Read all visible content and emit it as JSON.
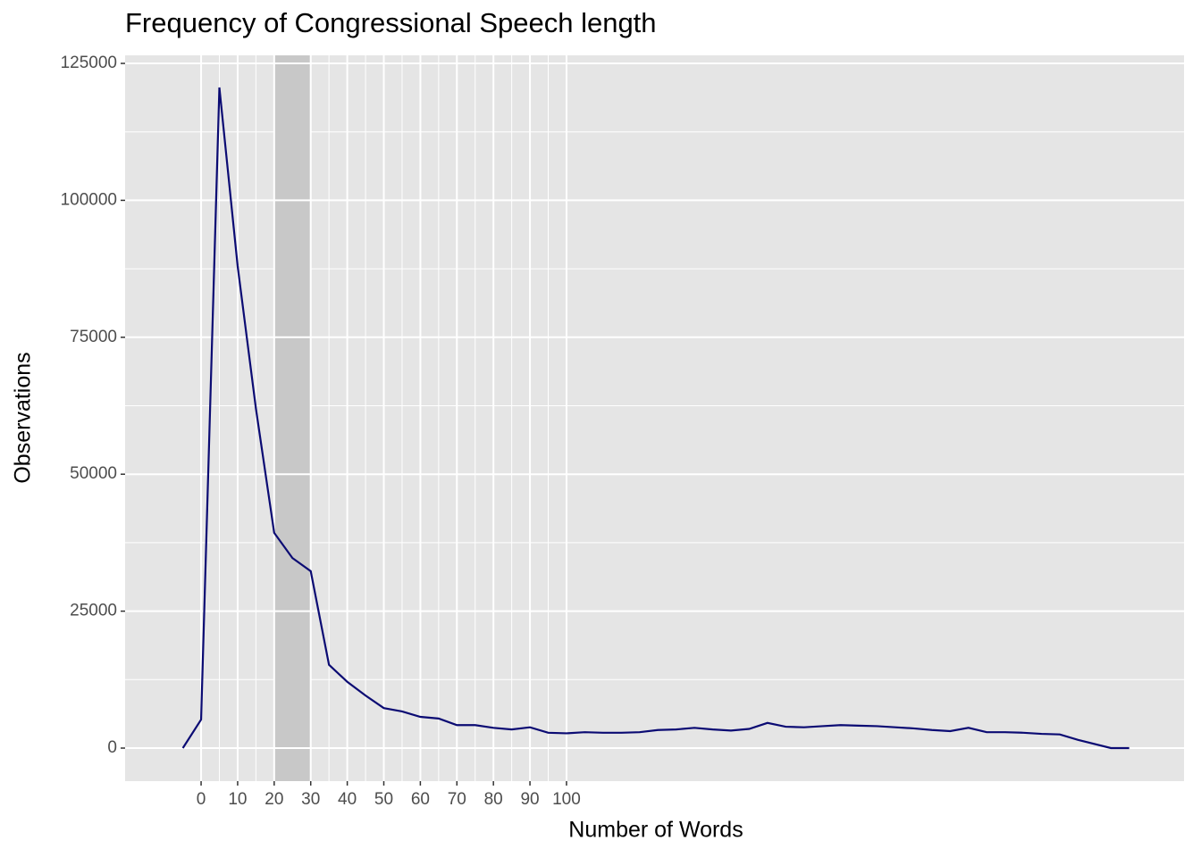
{
  "chart_data": {
    "type": "line",
    "title": "Frequency of Congressional Speech length",
    "x_label": "Number of Words",
    "y_label": "Observations",
    "x": [
      -5,
      0,
      5,
      10,
      15,
      20,
      25,
      30,
      35,
      40,
      45,
      50,
      55,
      60,
      65,
      70,
      75,
      80,
      85,
      90,
      95,
      100,
      105,
      110,
      115,
      120,
      125,
      130,
      135,
      140,
      145,
      150,
      155,
      160,
      165,
      170,
      175,
      180,
      185,
      190,
      195,
      200,
      205,
      210,
      215,
      220,
      225,
      230,
      235,
      240,
      249,
      254
    ],
    "series": [
      {
        "name": "Observations",
        "color": "#0b0b73",
        "values": [
          0,
          5200,
          120600,
          88000,
          62000,
          39300,
          34700,
          32300,
          15200,
          12100,
          9600,
          7300,
          6700,
          5700,
          5400,
          4200,
          4200,
          3700,
          3400,
          3800,
          2800,
          2700,
          2900,
          2800,
          2800,
          2900,
          3300,
          3400,
          3700,
          3400,
          3200,
          3500,
          4600,
          3900,
          3800,
          4000,
          4200,
          4100,
          4000,
          3800,
          3600,
          3300,
          3100,
          3700,
          2900,
          2900,
          2800,
          2600,
          2500,
          1500,
          0,
          0
        ]
      }
    ],
    "highlight": {
      "range": [
        20,
        30
      ],
      "color": "#c8c8c8"
    },
    "xlim": [
      -20.8,
      269
    ],
    "ylim": [
      -6030,
      126470
    ],
    "xticks": [
      0,
      10,
      20,
      30,
      40,
      50,
      60,
      70,
      80,
      90,
      100
    ],
    "yticks": [
      0,
      25000,
      50000,
      75000,
      100000,
      125000
    ],
    "grid": true
  }
}
